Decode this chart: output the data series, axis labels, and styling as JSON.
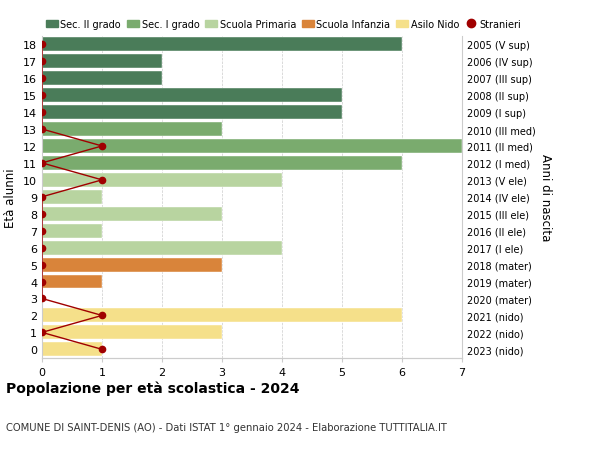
{
  "ages": [
    18,
    17,
    16,
    15,
    14,
    13,
    12,
    11,
    10,
    9,
    8,
    7,
    6,
    5,
    4,
    3,
    2,
    1,
    0
  ],
  "years": [
    "2005 (V sup)",
    "2006 (IV sup)",
    "2007 (III sup)",
    "2008 (II sup)",
    "2009 (I sup)",
    "2010 (III med)",
    "2011 (II med)",
    "2012 (I med)",
    "2013 (V ele)",
    "2014 (IV ele)",
    "2015 (III ele)",
    "2016 (II ele)",
    "2017 (I ele)",
    "2018 (mater)",
    "2019 (mater)",
    "2020 (mater)",
    "2021 (nido)",
    "2022 (nido)",
    "2023 (nido)"
  ],
  "bar_values": [
    6,
    2,
    2,
    5,
    5,
    3,
    7,
    6,
    4,
    1,
    3,
    1,
    4,
    3,
    1,
    0,
    6,
    3,
    1
  ],
  "bar_colors": [
    "#4a7c59",
    "#4a7c59",
    "#4a7c59",
    "#4a7c59",
    "#4a7c59",
    "#7aab6e",
    "#7aab6e",
    "#7aab6e",
    "#b8d4a0",
    "#b8d4a0",
    "#b8d4a0",
    "#b8d4a0",
    "#b8d4a0",
    "#d9843a",
    "#d9843a",
    "#d9843a",
    "#f5e08a",
    "#f5e08a",
    "#f5e08a"
  ],
  "stranieri_values": [
    0,
    0,
    0,
    0,
    0,
    0,
    1,
    0,
    1,
    0,
    0,
    0,
    0,
    0,
    0,
    0,
    1,
    0,
    1
  ],
  "stranieri_color": "#a00000",
  "ylabel_left": "Età alunni",
  "ylabel_right": "Anni di nascita",
  "xlim": [
    0,
    7
  ],
  "xticks": [
    0,
    1,
    2,
    3,
    4,
    5,
    6,
    7
  ],
  "ylim": [
    -0.5,
    18.5
  ],
  "title": "Popolazione per età scolastica - 2024",
  "subtitle": "COMUNE DI SAINT-DENIS (AO) - Dati ISTAT 1° gennaio 2024 - Elaborazione TUTTITALIA.IT",
  "legend_labels": [
    "Sec. II grado",
    "Sec. I grado",
    "Scuola Primaria",
    "Scuola Infanzia",
    "Asilo Nido",
    "Stranieri"
  ],
  "legend_colors": [
    "#4a7c59",
    "#7aab6e",
    "#b8d4a0",
    "#d9843a",
    "#f5e08a",
    "#a00000"
  ],
  "bg_color": "#ffffff",
  "grid_color": "#cccccc",
  "bar_height": 0.82
}
